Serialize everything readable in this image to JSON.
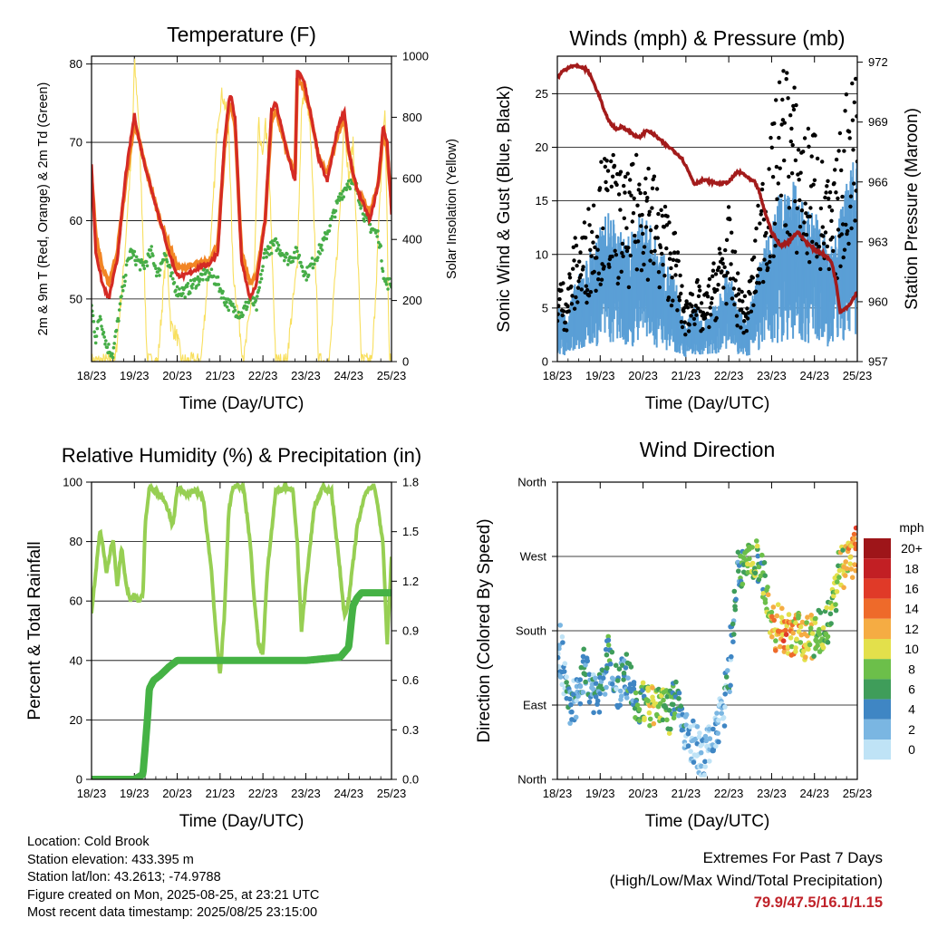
{
  "colors": {
    "temp2m": "#d42a24",
    "temp9m": "#f28524",
    "dewpoint": "#46ad47",
    "solar": "#f8df5e",
    "wind": "#5a9fd6",
    "gust": "#000000",
    "pressure": "#a31b1b",
    "rh": "#97cf53",
    "precip": "#45b245",
    "extremes": "#c0232a"
  },
  "chart_data": [
    {
      "id": "temperature",
      "type": "line",
      "title": "Temperature (F)",
      "xlabel": "Time (Day/UTC)",
      "ylabel": "2m & 9m T (Red, Orange) & 2m Td (Green)",
      "y2label": "Solar Insolation (Yellow)",
      "x_ticks": [
        "18/23",
        "19/23",
        "20/23",
        "21/23",
        "22/23",
        "23/23",
        "24/23",
        "25/23"
      ],
      "xlim": [
        0,
        7
      ],
      "ylim": [
        42,
        81
      ],
      "y_ticks": [
        50,
        60,
        70,
        80
      ],
      "y2lim": [
        0,
        1000
      ],
      "y2_ticks": [
        0,
        200,
        400,
        600,
        800,
        1000
      ],
      "series": [
        {
          "name": "2m T",
          "x": [
            0,
            0.1,
            0.25,
            0.4,
            0.6,
            0.8,
            1.0,
            1.12,
            1.25,
            1.4,
            1.6,
            1.8,
            2.0,
            2.2,
            2.5,
            2.75,
            2.95,
            3.1,
            3.2,
            3.25,
            3.35,
            3.5,
            3.7,
            3.85,
            4.05,
            4.2,
            4.3,
            4.6,
            4.75,
            4.8,
            4.95,
            5.1,
            5.3,
            5.5,
            5.75,
            5.9,
            6.0,
            6.1,
            6.2,
            6.5,
            6.7,
            6.8,
            6.9,
            7.0
          ],
          "values": [
            67,
            56,
            52,
            50,
            55,
            66,
            73.5,
            70,
            67,
            64,
            60,
            56,
            53,
            53,
            54,
            54.5,
            56,
            70,
            75,
            76,
            73,
            55,
            50,
            52,
            60,
            74,
            75,
            68,
            65,
            79,
            78,
            74,
            68,
            65,
            72,
            74,
            69,
            66,
            64,
            60,
            65,
            72,
            70,
            61
          ]
        },
        {
          "name": "9m T",
          "x": [
            0,
            0.1,
            0.25,
            0.4,
            0.6,
            0.8,
            1.0,
            1.12,
            1.25,
            1.4,
            1.6,
            1.8,
            2.0,
            2.2,
            2.5,
            2.75,
            2.95,
            3.1,
            3.2,
            3.25,
            3.35,
            3.5,
            3.7,
            3.85,
            4.05,
            4.2,
            4.3,
            4.6,
            4.75,
            4.8,
            4.95,
            5.1,
            5.3,
            5.5,
            5.75,
            5.9,
            6.0,
            6.1,
            6.2,
            6.5,
            6.7,
            6.8,
            6.9,
            7.0
          ],
          "values": [
            66,
            58,
            54,
            52,
            56,
            65,
            72.5,
            70,
            67,
            64,
            60,
            57,
            54,
            54,
            54.5,
            55,
            57,
            69,
            74,
            75,
            72,
            56,
            52,
            53,
            60,
            73,
            74,
            68,
            66,
            78,
            77,
            74,
            68,
            66,
            71,
            73,
            69,
            66,
            64,
            61,
            65,
            71,
            69,
            62
          ]
        },
        {
          "name": "2m Td",
          "x": [
            0,
            0.1,
            0.2,
            0.35,
            0.5,
            0.75,
            0.9,
            1.05,
            1.2,
            1.4,
            1.55,
            1.7,
            1.85,
            2.0,
            2.2,
            2.4,
            2.6,
            2.8,
            2.95,
            3.1,
            3.25,
            3.5,
            3.7,
            3.85,
            4.05,
            4.3,
            4.6,
            4.8,
            5.0,
            5.2,
            5.4,
            5.6,
            5.8,
            6.0,
            6.2,
            6.4,
            6.55,
            6.7,
            6.85,
            7.0
          ],
          "values": [
            49,
            45,
            48,
            44,
            43,
            52,
            56,
            55,
            54,
            56,
            53,
            56,
            53,
            51,
            51,
            52,
            53,
            53,
            52,
            50,
            49,
            48,
            50,
            49,
            56,
            57,
            55,
            56,
            53,
            55,
            57,
            60,
            63,
            65,
            64,
            60,
            59,
            58,
            52,
            52
          ]
        },
        {
          "name": "Solar Insolation",
          "axis": "y2",
          "x": [
            0.55,
            0.75,
            0.85,
            0.95,
            1.0,
            1.1,
            1.2,
            1.3,
            1.55,
            1.75,
            1.85,
            2.0,
            2.1,
            2.55,
            2.8,
            2.95,
            3.05,
            3.2,
            3.3,
            3.55,
            3.8,
            3.9,
            4.0,
            4.05,
            4.15,
            4.3,
            4.55,
            4.8,
            4.9,
            5.0,
            5.1,
            5.2,
            5.3,
            5.55,
            5.8,
            5.9,
            6.0,
            6.1,
            6.2,
            6.3,
            6.55,
            6.75,
            6.85,
            6.95
          ],
          "values": [
            0,
            300,
            520,
            700,
            980,
            800,
            420,
            0,
            0,
            380,
            120,
            80,
            0,
            0,
            420,
            800,
            880,
            780,
            300,
            0,
            280,
            780,
            650,
            800,
            600,
            0,
            0,
            320,
            820,
            910,
            760,
            440,
            0,
            0,
            500,
            820,
            580,
            720,
            400,
            0,
            0,
            580,
            840,
            0
          ]
        }
      ]
    },
    {
      "id": "winds",
      "type": "scatter",
      "title": "Winds (mph) & Pressure (mb)",
      "xlabel": "Time (Day/UTC)",
      "ylabel": "Sonic Wind & Gust (Blue, Black)",
      "y2label": "Station Pressure (Maroon)",
      "x_ticks": [
        "18/23",
        "19/23",
        "20/23",
        "21/23",
        "22/23",
        "23/23",
        "24/23",
        "25/23"
      ],
      "xlim": [
        0,
        7
      ],
      "ylim": [
        0,
        28.5
      ],
      "y_ticks": [
        0,
        5,
        10,
        15,
        20,
        25
      ],
      "y2lim": [
        957,
        972.3
      ],
      "y2_ticks": [
        957,
        960,
        963,
        966,
        969,
        972
      ],
      "series": [
        {
          "name": "Sonic Wind",
          "x": [
            0,
            0.2,
            0.4,
            0.6,
            0.8,
            1.0,
            1.2,
            1.4,
            1.6,
            1.8,
            2.0,
            2.2,
            2.4,
            2.6,
            2.8,
            2.9,
            3.0,
            3.2,
            3.4,
            3.6,
            3.8,
            4.0,
            4.2,
            4.4,
            4.6,
            4.8,
            5.0,
            5.2,
            5.4,
            5.6,
            5.8,
            6.0,
            6.2,
            6.4,
            6.6,
            6.8,
            7.0
          ],
          "values": [
            3,
            2.5,
            4,
            5,
            6,
            7,
            8,
            7,
            6.5,
            7,
            8,
            7,
            6,
            5,
            4,
            2.5,
            2,
            3,
            2,
            3,
            4,
            5,
            3,
            2,
            4,
            6,
            7,
            9,
            10,
            9,
            8,
            8,
            7,
            6,
            8,
            10,
            11
          ]
        },
        {
          "name": "Gust",
          "x": [
            0,
            0.2,
            0.4,
            0.6,
            0.8,
            1.0,
            1.2,
            1.4,
            1.6,
            1.8,
            2.0,
            2.2,
            2.4,
            2.6,
            2.8,
            2.9,
            3.0,
            3.2,
            3.4,
            3.6,
            3.8,
            4.0,
            4.2,
            4.4,
            4.6,
            4.8,
            5.0,
            5.2,
            5.4,
            5.6,
            5.8,
            6.0,
            6.2,
            6.4,
            6.6,
            6.8,
            7.0
          ],
          "values": [
            6,
            5,
            8,
            9,
            11,
            13,
            14,
            13,
            12,
            13,
            15,
            13,
            11,
            10,
            8,
            5,
            4,
            6,
            4,
            6,
            8,
            10,
            6,
            4,
            8,
            13,
            15,
            19,
            20,
            17,
            15,
            16,
            13,
            11,
            15,
            19,
            21
          ]
        },
        {
          "name": "Station Pressure",
          "axis": "y2",
          "x": [
            0,
            0.1,
            0.3,
            0.5,
            0.7,
            0.8,
            1.0,
            1.1,
            1.25,
            1.4,
            1.5,
            1.7,
            1.9,
            2.1,
            2.3,
            2.5,
            2.7,
            2.9,
            3.0,
            3.2,
            3.4,
            3.6,
            3.8,
            4.0,
            4.2,
            4.35,
            4.5,
            4.6,
            4.7,
            4.8,
            5.0,
            5.2,
            5.4,
            5.6,
            5.8,
            6.0,
            6.2,
            6.4,
            6.5,
            6.6,
            6.8,
            7.0
          ],
          "values": [
            971.2,
            971.5,
            971.8,
            971.8,
            971.6,
            971.2,
            970.2,
            969.5,
            968.9,
            968.6,
            968.8,
            968.5,
            968.2,
            968.6,
            968.3,
            967.9,
            967.6,
            967.2,
            966.8,
            965.9,
            966.1,
            966.0,
            965.9,
            966.0,
            966.5,
            966.4,
            966.1,
            966.0,
            965.6,
            964.8,
            963.5,
            962.8,
            963.0,
            963.5,
            963.0,
            962.6,
            962.4,
            962.0,
            961.0,
            959.5,
            959.8,
            960.5
          ]
        }
      ]
    },
    {
      "id": "humidity",
      "type": "line",
      "title": "Relative Humidity (%) & Precipitation (in)",
      "xlabel": "Time (Day/UTC)",
      "ylabel": "Percent & Total Rainfall",
      "x_ticks": [
        "18/23",
        "19/23",
        "20/23",
        "21/23",
        "22/23",
        "23/23",
        "24/23",
        "25/23"
      ],
      "xlim": [
        0,
        7
      ],
      "ylim": [
        0,
        100
      ],
      "y_ticks": [
        0,
        20,
        40,
        60,
        80,
        100
      ],
      "y2lim": [
        0,
        1.8
      ],
      "y2_ticks": [
        "0.0",
        "0.3",
        "0.6",
        "0.9",
        "1.2",
        "1.5",
        "1.8"
      ],
      "series": [
        {
          "name": "Relative Humidity",
          "x": [
            0,
            0.1,
            0.2,
            0.35,
            0.5,
            0.6,
            0.7,
            0.8,
            0.9,
            1.0,
            1.1,
            1.2,
            1.25,
            1.35,
            1.5,
            1.65,
            1.8,
            1.9,
            2.0,
            2.2,
            2.4,
            2.6,
            2.8,
            2.9,
            3.0,
            3.1,
            3.2,
            3.3,
            3.4,
            3.55,
            3.7,
            3.8,
            3.9,
            4.0,
            4.1,
            4.3,
            4.5,
            4.7,
            4.8,
            4.9,
            5.0,
            5.2,
            5.4,
            5.6,
            5.8,
            5.9,
            6.0,
            6.2,
            6.4,
            6.6,
            6.8,
            6.9,
            7.0
          ],
          "values": [
            56,
            70,
            84,
            70,
            81,
            65,
            78,
            66,
            60,
            62,
            60,
            62,
            85,
            98,
            97,
            95,
            90,
            85,
            98,
            96,
            97,
            95,
            70,
            50,
            35,
            55,
            90,
            98,
            99,
            98,
            80,
            60,
            45,
            42,
            70,
            97,
            98,
            97,
            80,
            50,
            65,
            92,
            98,
            97,
            70,
            55,
            60,
            85,
            97,
            99,
            80,
            45,
            75
          ]
        },
        {
          "name": "Total Rainfall",
          "axis": "y2",
          "x": [
            0,
            1.0,
            1.2,
            1.3,
            1.35,
            1.45,
            1.6,
            1.8,
            2.0,
            2.3,
            3.0,
            4.0,
            5.0,
            5.8,
            6.0,
            6.1,
            6.2,
            6.3,
            6.6,
            7.0
          ],
          "values": [
            0,
            0,
            0.03,
            0.35,
            0.55,
            0.6,
            0.63,
            0.68,
            0.72,
            0.72,
            0.72,
            0.72,
            0.72,
            0.74,
            0.8,
            1.05,
            1.1,
            1.13,
            1.13,
            1.13
          ]
        }
      ]
    },
    {
      "id": "direction",
      "type": "scatter",
      "title": "Wind Direction",
      "xlabel": "Time (Day/UTC)",
      "ylabel": "Direction (Colored By Speed)",
      "x_ticks": [
        "18/23",
        "19/23",
        "20/23",
        "21/23",
        "22/23",
        "23/23",
        "24/23",
        "25/23"
      ],
      "xlim": [
        0,
        7
      ],
      "y_ticks": [
        "North",
        "East",
        "South",
        "West",
        "North"
      ],
      "ylim": [
        0,
        360
      ],
      "colorbar": {
        "title": "mph",
        "labels": [
          "0",
          "2",
          "4",
          "6",
          "8",
          "10",
          "12",
          "14",
          "16",
          "18",
          "20+"
        ],
        "colors": [
          "#bfe3f6",
          "#7ab6e2",
          "#3f86c4",
          "#3f9d5a",
          "#6cbf4a",
          "#e3e04b",
          "#f5ac43",
          "#ee6a2a",
          "#e03a28",
          "#c21f24",
          "#9e1519"
        ]
      },
      "series": [
        {
          "name": "Direction",
          "x": [
            0.05,
            0.2,
            0.35,
            0.5,
            0.65,
            0.8,
            1.0,
            1.2,
            1.4,
            1.6,
            1.8,
            2.0,
            2.2,
            2.4,
            2.6,
            2.8,
            3.0,
            3.2,
            3.4,
            3.6,
            3.8,
            4.0,
            4.2,
            4.4,
            4.6,
            4.8,
            5.0,
            5.2,
            5.4,
            5.6,
            5.8,
            6.0,
            6.2,
            6.4,
            6.6,
            6.8,
            6.95
          ],
          "values": [
            160,
            120,
            90,
            100,
            140,
            110,
            100,
            150,
            110,
            130,
            95,
            90,
            85,
            90,
            80,
            95,
            60,
            40,
            30,
            45,
            80,
            110,
            250,
            260,
            270,
            240,
            180,
            185,
            175,
            180,
            170,
            175,
            180,
            200,
            255,
            265,
            280
          ],
          "speed": [
            2,
            4,
            5,
            3,
            6,
            4,
            5,
            6,
            4,
            5,
            6,
            8,
            10,
            9,
            8,
            6,
            3,
            2,
            2,
            3,
            4,
            4,
            6,
            8,
            9,
            7,
            12,
            14,
            13,
            11,
            12,
            10,
            9,
            8,
            10,
            12,
            14
          ]
        }
      ]
    }
  ],
  "info": {
    "location": "Location: Cold Brook",
    "elevation": "Station elevation: 433.395 m",
    "latlon": "Station lat/lon: 43.2613; -74.9788",
    "created": "Figure created on Mon, 2025-08-25, at 23:21 UTC",
    "timestamp": "Most recent data timestamp: 2025/08/25 23:15:00"
  },
  "extremes": {
    "heading": "Extremes For Past 7 Days",
    "subheading": "(High/Low/Max Wind/Total Precipitation)",
    "values": "79.9/47.5/16.1/1.15"
  }
}
